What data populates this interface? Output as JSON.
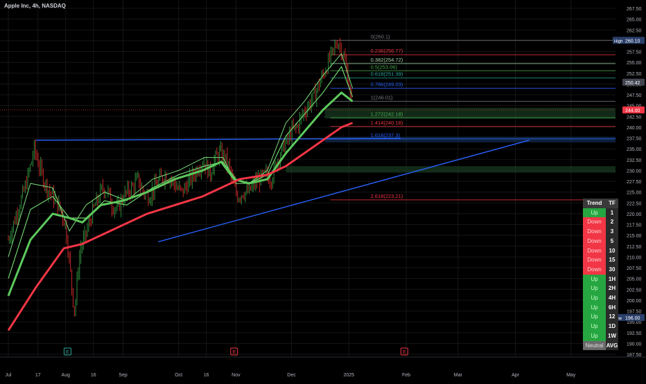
{
  "window": {
    "title": "Apple Inc, 4h, NASDAQ"
  },
  "colors": {
    "background": "#000000",
    "grid": "#161616",
    "fib_up": "#4caf50",
    "fib_down": "#f23645",
    "fib_blue": "#2962ff",
    "ema_red": "#f23645",
    "ema_green": "#5ec95e",
    "trendline": "#2962ff"
  },
  "chart_data": {
    "type": "candlestick",
    "title": "Apple Inc, 4h, NASDAQ",
    "ylim": [
      186,
      269
    ],
    "y_ticks": [
      "267.50",
      "265.00",
      "262.50",
      "260.00",
      "257.50",
      "255.00",
      "252.50",
      "250.00",
      "247.50",
      "245.00",
      "242.50",
      "240.00",
      "237.50",
      "235.00",
      "232.50",
      "230.00",
      "227.50",
      "225.00",
      "222.50",
      "220.00",
      "217.50",
      "215.00",
      "212.50",
      "210.00",
      "207.50",
      "205.00",
      "202.50",
      "200.00",
      "197.50",
      "195.00",
      "192.50",
      "190.00",
      "187.50"
    ],
    "x_ticks": [
      {
        "label": "Jul",
        "day": 0
      },
      {
        "label": "17",
        "day": 16
      },
      {
        "label": "Aug",
        "day": 31
      },
      {
        "label": "16",
        "day": 46
      },
      {
        "label": "Sep",
        "day": 62
      },
      {
        "label": "Oct",
        "day": 92
      },
      {
        "label": "16",
        "day": 107
      },
      {
        "label": "Nov",
        "day": 123
      },
      {
        "label": "Dec",
        "day": 153
      },
      {
        "label": "2025",
        "day": 184
      },
      {
        "label": "Feb",
        "day": 215
      },
      {
        "label": "Mar",
        "day": 243
      },
      {
        "label": "Apr",
        "day": 274
      },
      {
        "label": "May",
        "day": 304
      }
    ],
    "price_axis_labels": [
      {
        "tag": "High",
        "value": 260.1,
        "text": "260.10",
        "color": "#2a3f6a"
      },
      {
        "value": 250.42,
        "text": "250.42",
        "color": "#434651"
      },
      {
        "value": 244.0,
        "text": "244.00",
        "color": "#f23645"
      },
      {
        "tag": "Low",
        "value": 196.0,
        "text": "196.00",
        "color": "#2a3f6a"
      }
    ],
    "current_price_line": 244.0,
    "fib_levels": [
      {
        "label": "0(260.1)",
        "value": 260.1,
        "color": "#787b86"
      },
      {
        "label": "0.236(256.77)",
        "value": 256.77,
        "color": "#f23645"
      },
      {
        "label": "0.382(254.72)",
        "value": 254.72,
        "color": "#a5d6a7"
      },
      {
        "label": "0.5(253.06)",
        "value": 253.06,
        "color": "#4caf50"
      },
      {
        "label": "0.618(251.39)",
        "value": 251.39,
        "color": "#26a69a"
      },
      {
        "label": "0.786(249.03)",
        "value": 249.03,
        "color": "#2962ff"
      },
      {
        "label": "1(246.01)",
        "value": 246.01,
        "color": "#787b86"
      },
      {
        "label": "1.272(242.18)",
        "value": 242.18,
        "color": "#4caf50"
      },
      {
        "label": "1.414(240.18)",
        "value": 240.18,
        "color": "#f23645"
      },
      {
        "label": "1.618(237.3)",
        "value": 237.3,
        "color": "#2962ff"
      },
      {
        "label": "2.618(223.21)",
        "value": 223.21,
        "color": "#f23645"
      }
    ],
    "earnings_markers": [
      {
        "label": "E",
        "day": 32,
        "color": "#26a69a"
      },
      {
        "label": "E",
        "day": 122,
        "color": "#f23645"
      },
      {
        "label": "E",
        "day": 214,
        "color": "#f23645"
      }
    ],
    "price_series": [
      [
        0,
        214
      ],
      [
        3,
        218
      ],
      [
        6,
        222
      ],
      [
        9,
        226
      ],
      [
        12,
        231
      ],
      [
        14,
        235
      ],
      [
        16,
        232
      ],
      [
        19,
        228
      ],
      [
        21,
        226
      ],
      [
        24,
        224
      ],
      [
        27,
        222
      ],
      [
        29,
        220
      ],
      [
        31,
        217
      ],
      [
        33,
        209
      ],
      [
        35,
        200
      ],
      [
        36,
        197
      ],
      [
        37,
        204
      ],
      [
        39,
        212
      ],
      [
        41,
        214
      ],
      [
        43,
        217
      ],
      [
        46,
        221
      ],
      [
        49,
        224
      ],
      [
        51,
        226
      ],
      [
        54,
        225
      ],
      [
        56,
        222
      ],
      [
        59,
        221
      ],
      [
        61,
        223
      ],
      [
        64,
        225
      ],
      [
        67,
        226
      ],
      [
        70,
        228
      ],
      [
        73,
        225
      ],
      [
        76,
        224
      ],
      [
        79,
        226
      ],
      [
        82,
        228
      ],
      [
        85,
        229
      ],
      [
        88,
        228
      ],
      [
        91,
        226
      ],
      [
        94,
        225
      ],
      [
        97,
        227
      ],
      [
        100,
        229
      ],
      [
        103,
        231
      ],
      [
        106,
        232
      ],
      [
        109,
        229
      ],
      [
        111,
        232
      ],
      [
        114,
        234
      ],
      [
        117,
        233
      ],
      [
        119,
        231
      ],
      [
        122,
        226
      ],
      [
        124,
        224
      ],
      [
        127,
        225
      ],
      [
        130,
        225
      ],
      [
        133,
        227
      ],
      [
        136,
        228
      ],
      [
        139,
        229
      ],
      [
        142,
        228
      ],
      [
        145,
        232
      ],
      [
        148,
        235
      ],
      [
        151,
        237
      ],
      [
        153,
        239
      ],
      [
        156,
        240
      ],
      [
        159,
        243
      ],
      [
        162,
        245
      ],
      [
        165,
        247
      ],
      [
        168,
        250
      ],
      [
        171,
        253
      ],
      [
        173,
        255
      ],
      [
        175,
        257
      ],
      [
        177,
        259
      ],
      [
        178,
        260
      ],
      [
        180,
        258
      ],
      [
        182,
        255
      ],
      [
        184,
        250
      ],
      [
        186,
        244
      ]
    ],
    "ema_red": [
      [
        0,
        193
      ],
      [
        15,
        203
      ],
      [
        30,
        212
      ],
      [
        40,
        213
      ],
      [
        50,
        215
      ],
      [
        60,
        217
      ],
      [
        75,
        220
      ],
      [
        90,
        222
      ],
      [
        105,
        224
      ],
      [
        115,
        226
      ],
      [
        125,
        228
      ],
      [
        140,
        229
      ],
      [
        150,
        231
      ],
      [
        160,
        234
      ],
      [
        170,
        237
      ],
      [
        180,
        240
      ],
      [
        186,
        241
      ]
    ],
    "ema_green_thick": [
      [
        0,
        201
      ],
      [
        12,
        214
      ],
      [
        24,
        220
      ],
      [
        33,
        219
      ],
      [
        40,
        218
      ],
      [
        50,
        222
      ],
      [
        62,
        223
      ],
      [
        75,
        225
      ],
      [
        90,
        228
      ],
      [
        105,
        230
      ],
      [
        115,
        232
      ],
      [
        122,
        228
      ],
      [
        130,
        227
      ],
      [
        140,
        228
      ],
      [
        150,
        234
      ],
      [
        160,
        239
      ],
      [
        170,
        244
      ],
      [
        180,
        248
      ],
      [
        186,
        246
      ]
    ],
    "ema_green_mid": [
      [
        0,
        205
      ],
      [
        12,
        221
      ],
      [
        24,
        224
      ],
      [
        33,
        219
      ],
      [
        42,
        219
      ],
      [
        52,
        223
      ],
      [
        64,
        222
      ],
      [
        78,
        226
      ],
      [
        92,
        229
      ],
      [
        106,
        231
      ],
      [
        116,
        232
      ],
      [
        123,
        228
      ],
      [
        130,
        227
      ],
      [
        140,
        229
      ],
      [
        150,
        238
      ],
      [
        160,
        243
      ],
      [
        170,
        248
      ],
      [
        180,
        254
      ],
      [
        186,
        247
      ]
    ],
    "ema_green_fast": [
      [
        0,
        210
      ],
      [
        12,
        227
      ],
      [
        24,
        226
      ],
      [
        33,
        216
      ],
      [
        42,
        222
      ],
      [
        52,
        225
      ],
      [
        64,
        223
      ],
      [
        78,
        228
      ],
      [
        92,
        230
      ],
      [
        106,
        233
      ],
      [
        116,
        233
      ],
      [
        123,
        227
      ],
      [
        130,
        227
      ],
      [
        140,
        230
      ],
      [
        150,
        241
      ],
      [
        160,
        246
      ],
      [
        170,
        252
      ],
      [
        180,
        257
      ],
      [
        186,
        249
      ]
    ],
    "trendline_horizontal": [
      [
        0,
        237.0
      ],
      [
        212,
        237.4
      ]
    ],
    "trendline_ascending": [
      [
        60,
        213.5
      ],
      [
        268,
        237.0
      ]
    ],
    "zones": [
      {
        "from_day": 171,
        "to_day": 330,
        "low": 242.0,
        "high": 244.5,
        "color": "#1f4d2a"
      },
      {
        "from_day": 171,
        "to_day": 330,
        "low": 236.5,
        "high": 237.8,
        "color": "#1a3a6a"
      },
      {
        "from_day": 150,
        "to_day": 330,
        "low": 229.5,
        "high": 231.0,
        "color": "#1f4d2a"
      }
    ]
  },
  "trend_table": {
    "header_trend": "Trend",
    "header_tf": "TF",
    "rows": [
      {
        "trend": "Up",
        "tf": "1",
        "state": "up"
      },
      {
        "trend": "Down",
        "tf": "2",
        "state": "down"
      },
      {
        "trend": "Down",
        "tf": "3",
        "state": "down"
      },
      {
        "trend": "Down",
        "tf": "5",
        "state": "down"
      },
      {
        "trend": "Down",
        "tf": "10",
        "state": "down"
      },
      {
        "trend": "Down",
        "tf": "15",
        "state": "down"
      },
      {
        "trend": "Down",
        "tf": "30",
        "state": "down"
      },
      {
        "trend": "Up",
        "tf": "1H",
        "state": "up"
      },
      {
        "trend": "Up",
        "tf": "2H",
        "state": "up"
      },
      {
        "trend": "Up",
        "tf": "4H",
        "state": "up"
      },
      {
        "trend": "Up",
        "tf": "6H",
        "state": "up"
      },
      {
        "trend": "Up",
        "tf": "12",
        "state": "up"
      },
      {
        "trend": "Up",
        "tf": "1D",
        "state": "up"
      },
      {
        "trend": "Up",
        "tf": "1W",
        "state": "up"
      },
      {
        "trend": "Neutral",
        "tf": "AVG",
        "state": "neutral"
      }
    ]
  }
}
